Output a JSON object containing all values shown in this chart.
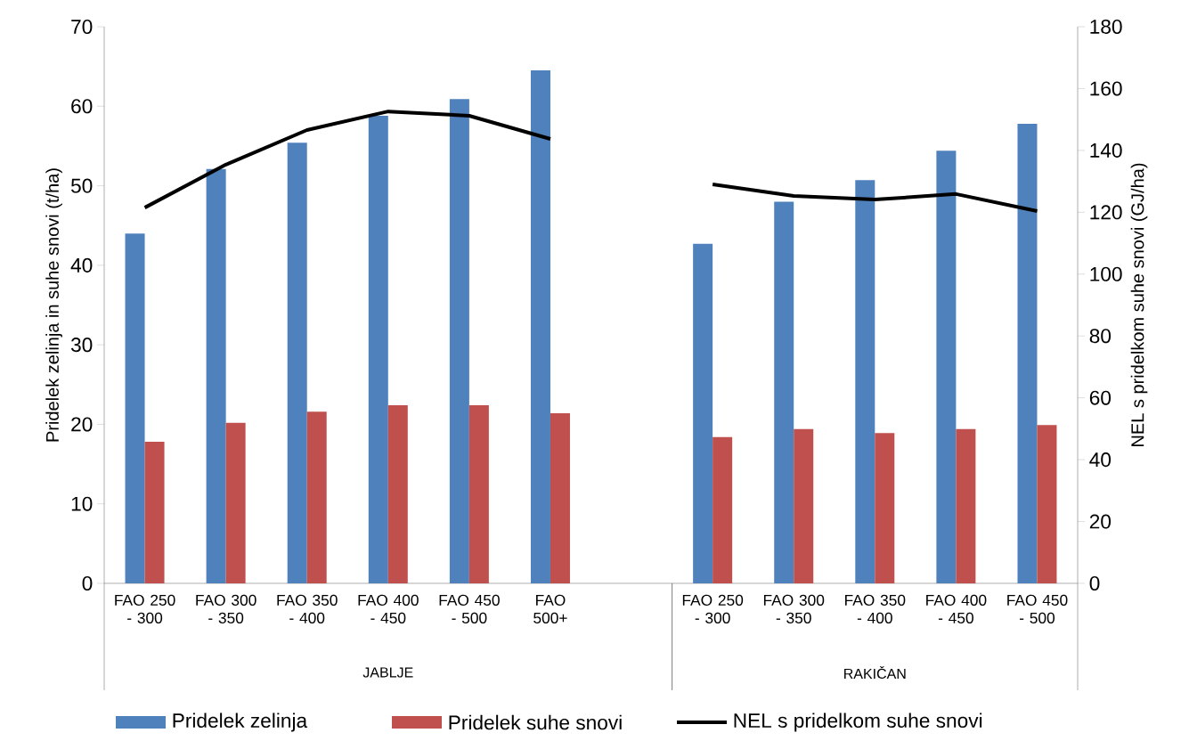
{
  "chart_data": {
    "type": "bar",
    "categories": [
      "FAO 250 - 300",
      "FAO 300 - 350",
      "FAO 350 - 400",
      "FAO 400 - 450",
      "FAO 450 - 500",
      "FAO 500+",
      null,
      "FAO 250 - 300",
      "FAO 300 - 350",
      "FAO 350 - 400",
      "FAO 400 - 450",
      "FAO 450 - 500"
    ],
    "series": [
      {
        "name": "Pridelek zelinja",
        "color": "#4f81bd",
        "values": [
          44.0,
          52.1,
          55.4,
          58.8,
          60.9,
          64.5,
          null,
          42.7,
          48.0,
          50.7,
          54.4,
          57.8
        ]
      },
      {
        "name": "Pridelek suhe snovi",
        "color": "#c0504d",
        "values": [
          17.8,
          20.2,
          21.6,
          22.4,
          22.4,
          21.4,
          null,
          18.4,
          19.4,
          18.9,
          19.4,
          19.9
        ]
      },
      {
        "name": "NEL s pridelkom suhe snovi",
        "type": "line",
        "axis": "y2",
        "color": "#000000",
        "line_style": "solid",
        "values": [
          121.5,
          135.4,
          146.6,
          152.6,
          151.2,
          143.7,
          null,
          129.0,
          125.3,
          124.1,
          125.9,
          120.4
        ]
      }
    ],
    "ylabel": "Pridelek zelinja in suhe snovi (t/ha)",
    "y2label": "NEL  s pridelkom suhe snovi (GJ/ha)",
    "ylim": [
      0,
      70
    ],
    "yticks": [
      0,
      10,
      20,
      30,
      40,
      50,
      60,
      70
    ],
    "y2lim": [
      0,
      180
    ],
    "y2ticks": [
      0,
      20,
      40,
      60,
      80,
      100,
      120,
      140,
      160,
      180
    ],
    "annotations": [
      "JABLJE",
      "RAKIČAN"
    ],
    "grid": false,
    "legend": "bottom",
    "marker": "none"
  }
}
